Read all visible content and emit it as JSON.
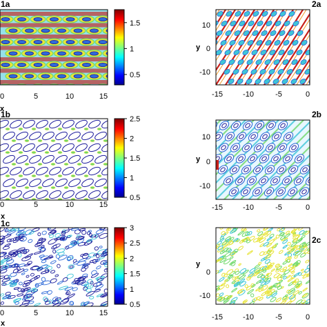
{
  "panels": [
    {
      "label": "1a",
      "xticks": [
        "0",
        "5",
        "10",
        "15"
      ],
      "yticks": [],
      "xlabel": "x",
      "ylabel": ""
    },
    {
      "label": "2a",
      "xticks": [
        "-15",
        "-10",
        "-5",
        "0"
      ],
      "yticks": [
        "10",
        "0",
        "-10"
      ],
      "xlabel": "",
      "ylabel": "y"
    },
    {
      "label": "1b",
      "xticks": [
        "0",
        "5",
        "10",
        "15"
      ],
      "yticks": [],
      "xlabel": "x",
      "ylabel": ""
    },
    {
      "label": "2b",
      "xticks": [
        "-15",
        "-10",
        "-5",
        "0"
      ],
      "yticks": [
        "10",
        "0",
        "-10"
      ],
      "xlabel": "",
      "ylabel": "y"
    },
    {
      "label": "1c",
      "xticks": [
        "0",
        "5",
        "10",
        "15"
      ],
      "yticks": [],
      "xlabel": "x",
      "ylabel": ""
    },
    {
      "label": "2c",
      "xticks": [
        "-15",
        "-10",
        "-5",
        "0"
      ],
      "yticks": [
        "0",
        "-10"
      ],
      "xlabel": "",
      "ylabel": "y"
    }
  ],
  "colorbars": [
    {
      "ticks": [
        "1.5",
        "1",
        "0.5"
      ],
      "range": [
        0.3,
        1.75
      ]
    },
    {
      "ticks": [
        "2.5",
        "2",
        "1.5",
        "1",
        "0.5"
      ],
      "range": [
        0.5,
        2.5
      ]
    },
    {
      "ticks": [
        "3",
        "2.5",
        "2",
        "1.5",
        "1",
        "0.5"
      ],
      "range": [
        0.5,
        3.0
      ]
    }
  ],
  "colors": {
    "dark_blue": "#1a1a9a",
    "blue": "#2f6bd8",
    "cyan": "#3fc6d8",
    "green": "#6fd96a",
    "yellow": "#e8e43a",
    "orange": "#f09a2a",
    "red": "#c8201a"
  }
}
